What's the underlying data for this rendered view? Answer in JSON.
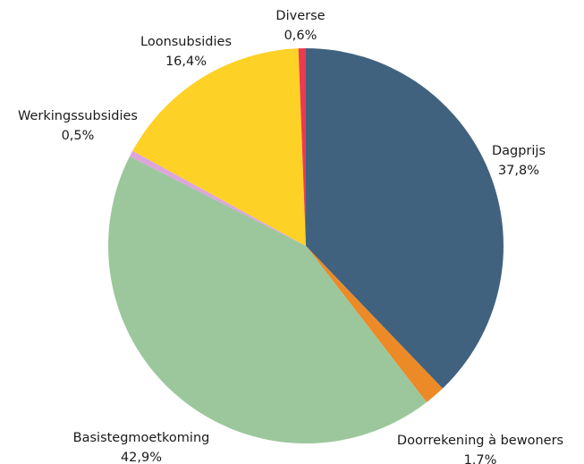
{
  "chart_data": {
    "type": "pie",
    "title": "",
    "slices": [
      {
        "name": "Dagprijs",
        "value": 37.8,
        "display": "37,8%",
        "color": "#40627f"
      },
      {
        "name": "Doorrekening à bewoners",
        "value": 1.7,
        "display": "1.7%",
        "color": "#ec8a27"
      },
      {
        "name": "Basistegmoetkoming",
        "value": 42.9,
        "display": "42,9%",
        "color": "#9cc79c"
      },
      {
        "name": "Werkingssubsidies",
        "value": 0.5,
        "display": "0,5%",
        "color": "#dca6dc"
      },
      {
        "name": "Loonsubsidies",
        "value": 16.4,
        "display": "16,4%",
        "color": "#fdd126"
      },
      {
        "name": "Diverse",
        "value": 0.6,
        "display": "0,6%",
        "color": "#ea3b52"
      }
    ],
    "start_angle": "12 o'clock",
    "direction": "clockwise",
    "legend": "none"
  }
}
